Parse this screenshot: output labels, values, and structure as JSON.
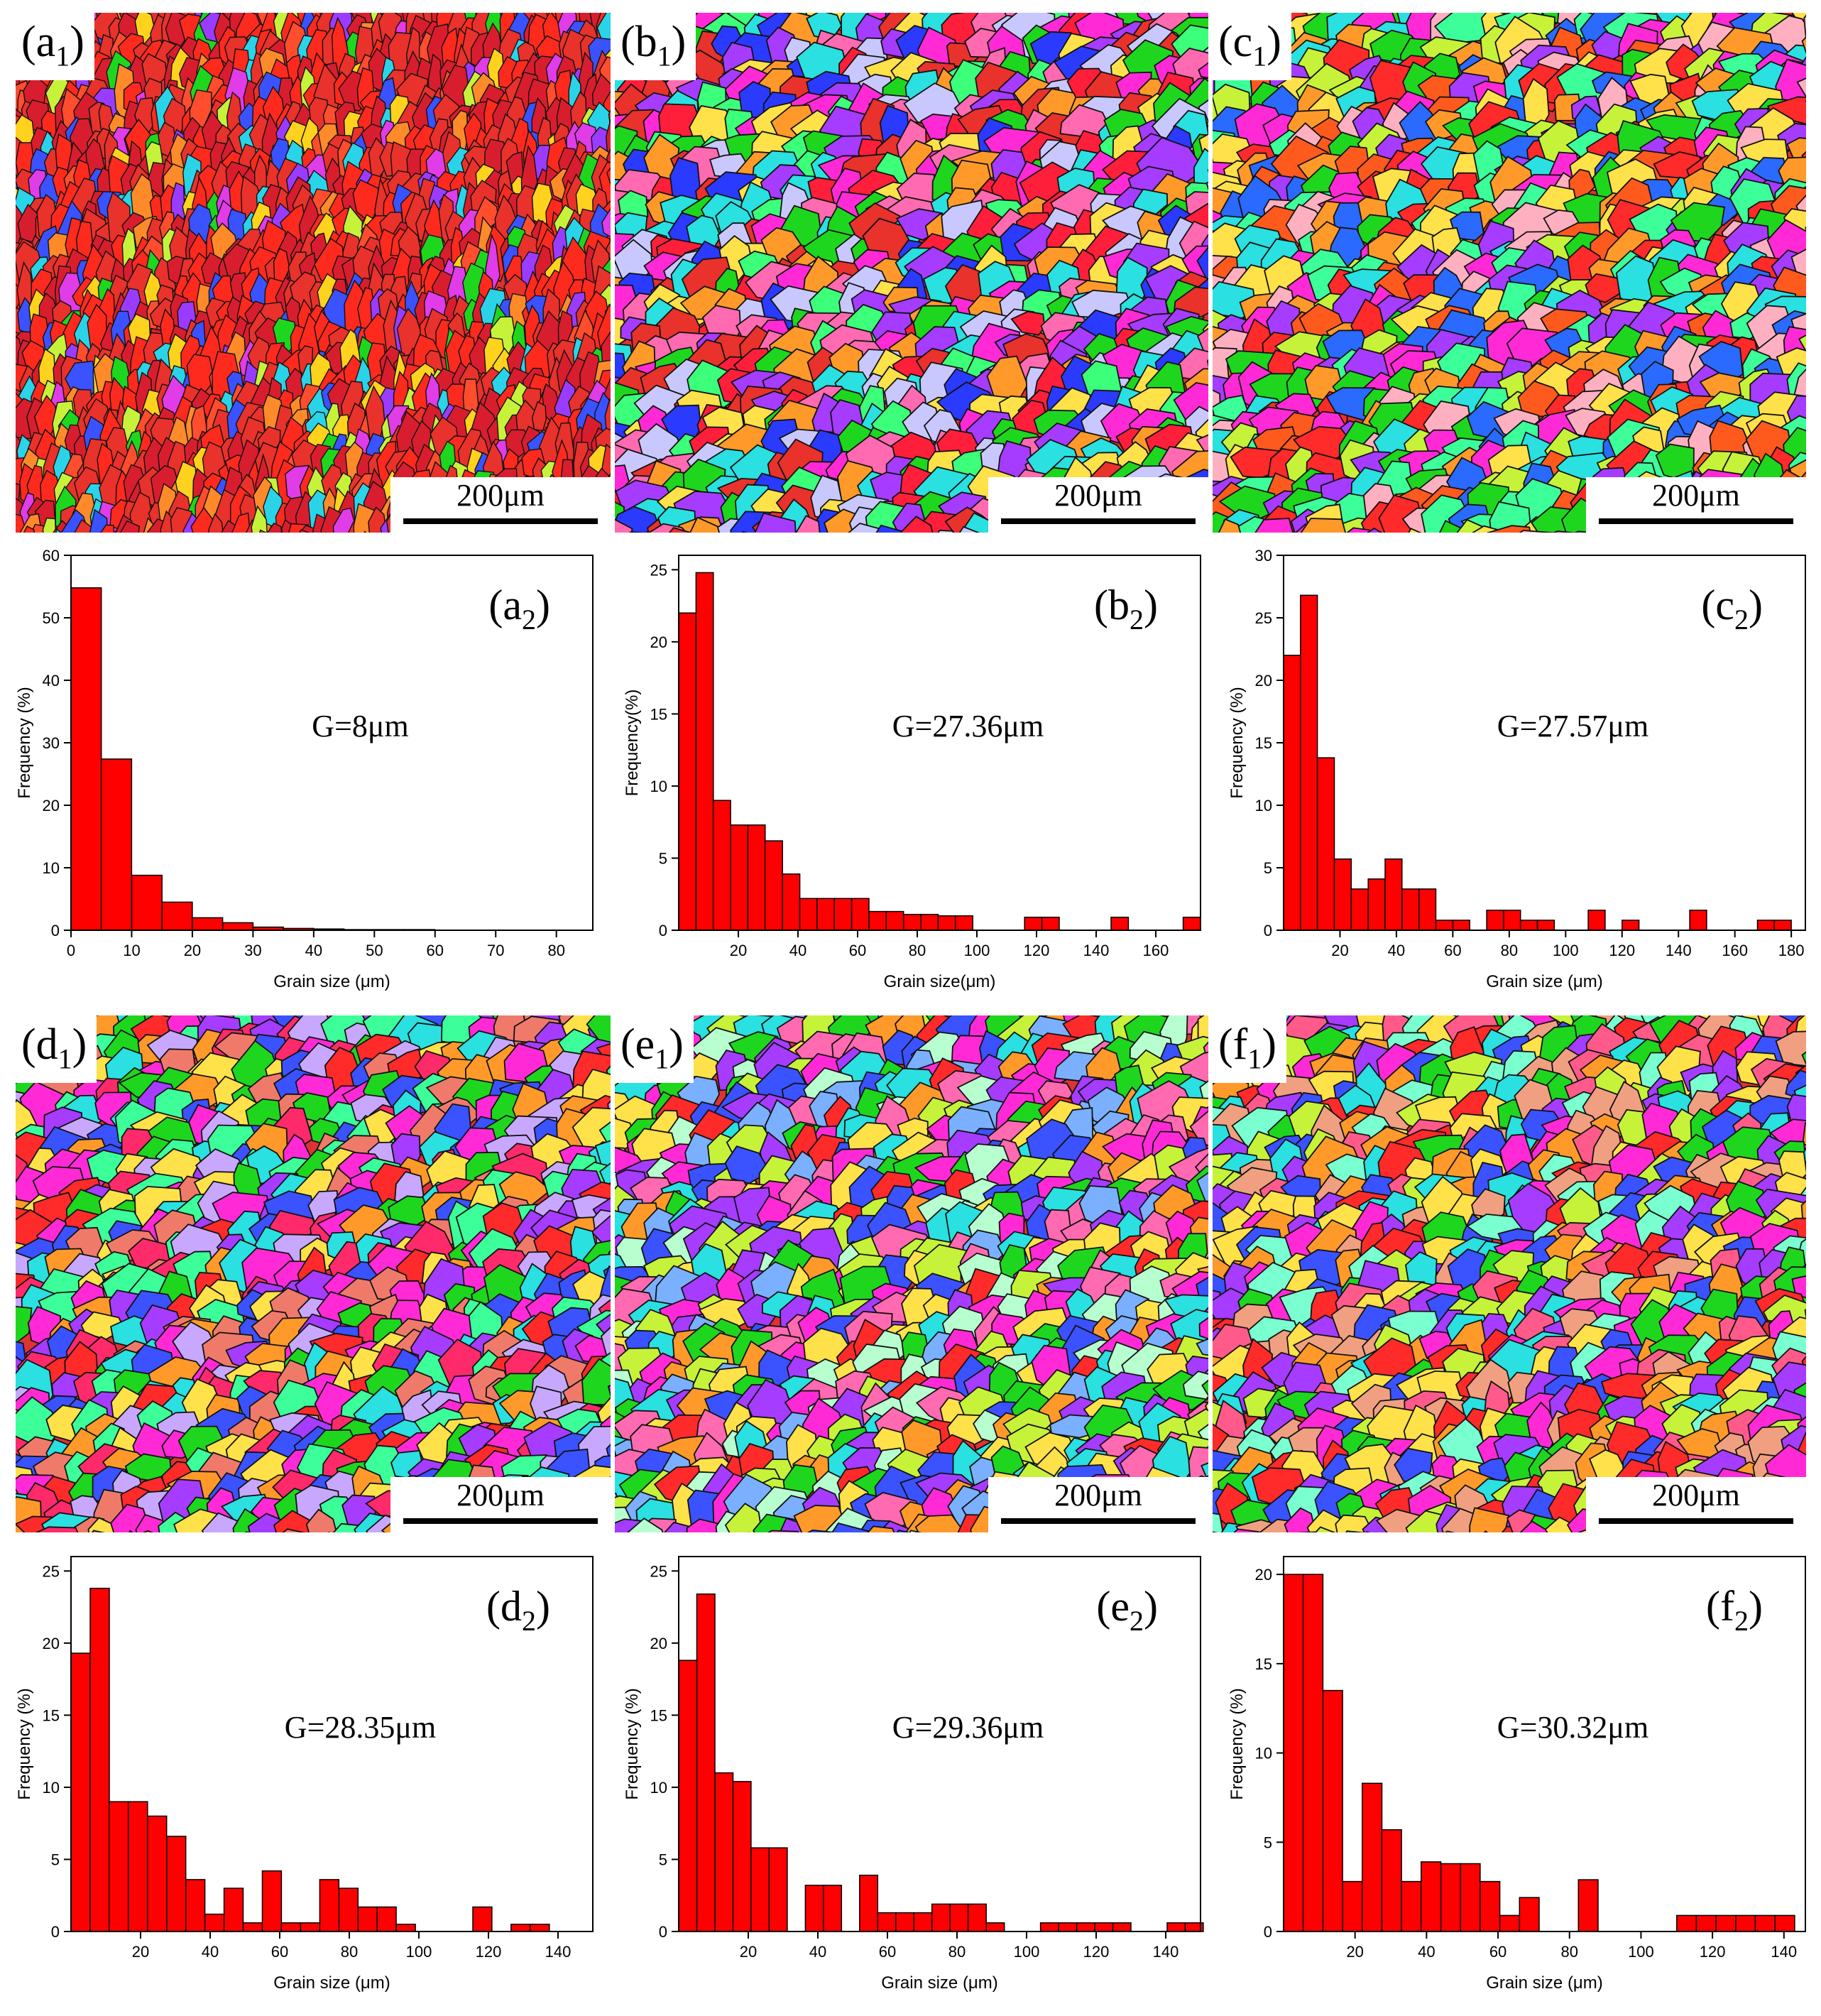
{
  "ebsd_maps": [
    {
      "id": "a1",
      "letter": "a",
      "sub": "1",
      "scale": "200μm",
      "palette": [
        "#e8322b",
        "#ff2a1e",
        "#d81e2e",
        "#ff4d2e",
        "#1fd61f",
        "#2ad3e8",
        "#ffd21e",
        "#e03ce8",
        "#3a52ff",
        "#ff8a2a",
        "#9a3cff",
        "#c7f23a"
      ]
    },
    {
      "id": "b1",
      "letter": "b",
      "sub": "1",
      "scale": "200μm",
      "palette": [
        "#ff1f3a",
        "#ff2ad6",
        "#2a3aff",
        "#1fd61f",
        "#ff9a2a",
        "#2ae0e0",
        "#a53cff",
        "#ffe14a",
        "#3cff7a",
        "#ff6ab0",
        "#c8c8ff",
        "#e8322b"
      ]
    },
    {
      "id": "c1",
      "letter": "c",
      "sub": "1",
      "scale": "200μm",
      "palette": [
        "#ff2a2a",
        "#1fd61f",
        "#ff9a2a",
        "#ff2ad6",
        "#2a6aff",
        "#2ae0e0",
        "#ffe14a",
        "#a53cff",
        "#ffb0c0",
        "#c7f23a",
        "#3cff9a",
        "#ff5a1e"
      ]
    },
    {
      "id": "d1",
      "letter": "d",
      "sub": "1",
      "scale": "200μm",
      "palette": [
        "#ff2a6a",
        "#ff2ad6",
        "#a53cff",
        "#3a52ff",
        "#1fd61f",
        "#ff9a2a",
        "#2ae0e0",
        "#ff2a2a",
        "#ffe14a",
        "#c8a8ff",
        "#f07a6a",
        "#3cff9a"
      ]
    },
    {
      "id": "e1",
      "letter": "e",
      "sub": "1",
      "scale": "200μm",
      "palette": [
        "#ff2ad6",
        "#a53cff",
        "#3a52ff",
        "#1fd61f",
        "#ff2a2a",
        "#2ae0e0",
        "#ff9a2a",
        "#ffe14a",
        "#7ab0ff",
        "#ff6ab0",
        "#b8ffd0",
        "#c7f23a"
      ]
    },
    {
      "id": "f1",
      "letter": "f",
      "sub": "1",
      "scale": "200μm",
      "palette": [
        "#ff2a2a",
        "#1fd61f",
        "#ff2ad6",
        "#ff9a2a",
        "#a53cff",
        "#2ae0e0",
        "#ffe14a",
        "#3a52ff",
        "#f0a080",
        "#7affd0",
        "#ff5a8a",
        "#c7f23a"
      ]
    }
  ],
  "chart_data": [
    {
      "id": "a2",
      "type": "bar",
      "panel_letter": "a",
      "panel_sub": "2",
      "annotation": "G=8μm",
      "xlabel": "Grain size (μm)",
      "ylabel": "Frequency (%)",
      "xlim": [
        0,
        86
      ],
      "ylim": [
        0,
        60
      ],
      "bin_width": 5,
      "xticks": [
        0,
        10,
        20,
        30,
        40,
        50,
        60,
        70,
        80
      ],
      "yticks": [
        0,
        10,
        20,
        30,
        40,
        50,
        60
      ],
      "bin_starts": [
        0,
        5,
        10,
        15,
        20,
        25,
        30,
        35,
        40,
        45,
        50,
        55
      ],
      "values": [
        54.8,
        27.4,
        8.8,
        4.5,
        2.0,
        1.2,
        0.5,
        0.3,
        0.2,
        0.1,
        0.1,
        0.1
      ]
    },
    {
      "id": "b2",
      "type": "bar",
      "panel_letter": "b",
      "panel_sub": "2",
      "annotation": "G=27.36μm",
      "xlabel": "Grain size(μm)",
      "ylabel": "Frequency(%)",
      "xlim": [
        0,
        175
      ],
      "ylim": [
        0,
        26
      ],
      "bin_width": 5.8,
      "xticks": [
        20,
        40,
        60,
        80,
        100,
        120,
        140,
        160
      ],
      "yticks": [
        0,
        5,
        10,
        15,
        20,
        25
      ],
      "bin_starts": [
        0,
        5.8,
        11.6,
        17.4,
        23.2,
        29.0,
        34.8,
        40.6,
        46.4,
        52.2,
        58.0,
        63.8,
        69.6,
        75.4,
        81.2,
        87.0,
        92.8,
        116.0,
        121.8,
        145.0,
        169.2
      ],
      "values": [
        22.0,
        24.8,
        9.0,
        7.3,
        7.3,
        6.2,
        3.9,
        2.2,
        2.2,
        2.2,
        2.2,
        1.3,
        1.3,
        1.1,
        1.1,
        1.0,
        1.0,
        0.9,
        0.9,
        0.9,
        0.9
      ]
    },
    {
      "id": "c2",
      "type": "bar",
      "panel_letter": "c",
      "panel_sub": "2",
      "annotation": "G=27.57μm",
      "xlabel": "Grain size (μm)",
      "ylabel": "Frequency (%)",
      "xlim": [
        0,
        185
      ],
      "ylim": [
        0,
        30
      ],
      "bin_width": 6,
      "xticks": [
        20,
        40,
        60,
        80,
        100,
        120,
        140,
        160,
        180
      ],
      "yticks": [
        0,
        5,
        10,
        15,
        20,
        25,
        30
      ],
      "bin_starts": [
        0,
        6,
        12,
        18,
        24,
        30,
        36,
        42,
        48,
        54,
        60,
        72,
        78,
        84,
        90,
        108,
        120,
        144,
        168,
        174
      ],
      "values": [
        22.0,
        26.8,
        13.8,
        5.7,
        3.3,
        4.1,
        5.7,
        3.3,
        3.3,
        0.8,
        0.8,
        1.6,
        1.6,
        0.8,
        0.8,
        1.6,
        0.8,
        1.6,
        0.8,
        0.8
      ]
    },
    {
      "id": "d2",
      "type": "bar",
      "panel_letter": "d",
      "panel_sub": "2",
      "annotation": "G=28.35μm",
      "xlabel": "Grain size (μm)",
      "ylabel": "Frequency (%)",
      "xlim": [
        0,
        150
      ],
      "ylim": [
        0,
        26
      ],
      "bin_width": 5.5,
      "xticks": [
        20,
        40,
        60,
        80,
        100,
        120,
        140
      ],
      "yticks": [
        0,
        5,
        10,
        15,
        20,
        25
      ],
      "bin_starts": [
        0,
        5.5,
        11,
        16.5,
        22,
        27.5,
        33,
        38.5,
        44,
        49.5,
        55,
        60.5,
        66,
        71.5,
        77,
        82.5,
        88,
        93.5,
        115.5,
        126.5,
        132
      ],
      "values": [
        19.3,
        23.8,
        9.0,
        9.0,
        8.0,
        6.6,
        3.6,
        1.2,
        3.0,
        0.6,
        4.2,
        0.6,
        0.6,
        3.6,
        3.0,
        1.7,
        1.7,
        0.5,
        1.7,
        0.5,
        0.5
      ]
    },
    {
      "id": "e2",
      "type": "bar",
      "panel_letter": "e",
      "panel_sub": "2",
      "annotation": "G=29.36μm",
      "xlabel": "Grain size (μm)",
      "ylabel": "Frequency (%)",
      "xlim": [
        0,
        150
      ],
      "ylim": [
        0,
        26
      ],
      "bin_width": 5.2,
      "xticks": [
        20,
        40,
        60,
        80,
        100,
        120,
        140
      ],
      "yticks": [
        0,
        5,
        10,
        15,
        20,
        25
      ],
      "bin_starts": [
        0,
        5.2,
        10.4,
        15.6,
        20.8,
        26,
        36.4,
        41.6,
        52,
        57.2,
        62.4,
        67.6,
        72.8,
        78,
        83.2,
        88.4,
        104,
        109.2,
        114.4,
        119.6,
        124.8,
        140.4,
        145.6
      ],
      "values": [
        18.8,
        23.4,
        11.0,
        10.4,
        5.8,
        5.8,
        3.2,
        3.2,
        3.9,
        1.3,
        1.3,
        1.3,
        1.9,
        1.9,
        1.9,
        0.6,
        0.6,
        0.6,
        0.6,
        0.6,
        0.6,
        0.6,
        0.6
      ]
    },
    {
      "id": "f2",
      "type": "bar",
      "panel_letter": "f",
      "panel_sub": "2",
      "annotation": "G=30.32μm",
      "xlabel": "Grain size (μm)",
      "ylabel": "Frequency (%)",
      "xlim": [
        0,
        146
      ],
      "ylim": [
        0,
        21
      ],
      "bin_width": 5.5,
      "xticks": [
        20,
        40,
        60,
        80,
        100,
        120,
        140
      ],
      "yticks": [
        0,
        5,
        10,
        15,
        20
      ],
      "bin_starts": [
        0,
        5.5,
        11,
        16.5,
        22,
        27.5,
        33,
        38.5,
        44,
        49.5,
        55,
        60.5,
        66,
        71.5,
        77,
        82.5,
        110,
        115.5,
        121,
        126.5,
        132,
        137.5
      ],
      "values": [
        20.0,
        20.0,
        13.5,
        2.8,
        8.3,
        5.7,
        2.8,
        3.9,
        3.8,
        3.8,
        2.8,
        0.9,
        1.9,
        0.0,
        0.0,
        2.9,
        0.9,
        0.9,
        0.9,
        0.9,
        0.9,
        0.9
      ]
    }
  ]
}
